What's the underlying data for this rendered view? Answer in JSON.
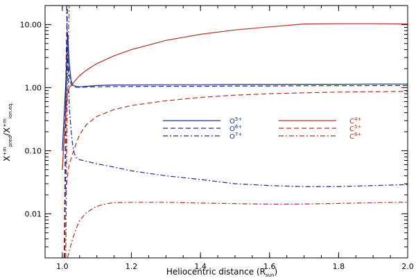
{
  "chart_data": {
    "type": "line",
    "xlim": [
      0.95,
      2.0
    ],
    "ylim": [
      0.002,
      20
    ],
    "yscale": "log",
    "grid": false,
    "legend_position": "center-right",
    "xlabel": {
      "main": "Heliocentric distance (R",
      "sub": "sun",
      "tail": ")"
    },
    "ylabel": {
      "main": "X",
      "sup1": "+m",
      "sub1": "pred",
      "mid": "/X",
      "sup2": "+m",
      "sub2": "ion.eq."
    },
    "x_ticks": [
      1.0,
      1.2,
      1.4,
      1.6,
      1.8,
      2.0
    ],
    "x_tick_labels": [
      "1.0",
      "1.2",
      "1.4",
      "1.6",
      "1.8",
      "2.0"
    ],
    "y_ticks": [
      0.01,
      0.1,
      1,
      10
    ],
    "y_tick_labels": [
      "0.01",
      "0.10",
      "1.00",
      "10.00"
    ],
    "colors": {
      "oxygen": "#1a2a8c",
      "carbon": "#b0301e"
    },
    "series": [
      {
        "name": "O5+",
        "ion": "O",
        "charge": "5+",
        "color": "#1a2a8c",
        "dash": "solid",
        "x": [
          1.0,
          1.005,
          1.01,
          1.015,
          1.02,
          1.025,
          1.03,
          1.04,
          1.05,
          1.07,
          1.1,
          1.15,
          1.2,
          1.3,
          1.4,
          1.5,
          1.6,
          1.7,
          1.8,
          1.9,
          2.0
        ],
        "y": [
          0.1,
          0.35,
          1.2,
          7.5,
          2.5,
          1.3,
          1.1,
          1.04,
          1.03,
          1.05,
          1.08,
          1.1,
          1.1,
          1.11,
          1.11,
          1.12,
          1.12,
          1.13,
          1.13,
          1.14,
          1.14
        ]
      },
      {
        "name": "O6+",
        "ion": "O",
        "charge": "6+",
        "color": "#1a2a8c",
        "dash": "dash",
        "x": [
          1.0,
          1.005,
          1.01,
          1.015,
          1.02,
          1.025,
          1.03,
          1.04,
          1.05,
          1.07,
          1.1,
          1.15,
          1.2,
          1.3,
          1.4,
          1.5,
          1.6,
          1.7,
          1.8,
          1.9,
          2.0
        ],
        "y": [
          0.05,
          0.15,
          0.6,
          3.5,
          1.6,
          1.15,
          1.05,
          1.02,
          1.01,
          1.02,
          1.03,
          1.04,
          1.04,
          1.05,
          1.05,
          1.06,
          1.06,
          1.07,
          1.07,
          1.08,
          1.08
        ]
      },
      {
        "name": "O7+",
        "ion": "O",
        "charge": "7+",
        "color": "#1a2a8c",
        "dash": "dashdot",
        "x": [
          1.012,
          1.014,
          1.016,
          1.018,
          1.02,
          1.025,
          1.03,
          1.035,
          1.04,
          1.05,
          1.07,
          1.1,
          1.15,
          1.2,
          1.3,
          1.4,
          1.5,
          1.6,
          1.7,
          1.8,
          1.9,
          2.0
        ],
        "y": [
          20,
          8.0,
          3.0,
          1.2,
          0.5,
          0.22,
          0.12,
          0.09,
          0.078,
          0.072,
          0.068,
          0.062,
          0.055,
          0.048,
          0.04,
          0.035,
          0.03,
          0.028,
          0.027,
          0.027,
          0.028,
          0.029
        ]
      },
      {
        "name": "C4+",
        "ion": "C",
        "charge": "4+",
        "color": "#b0301e",
        "dash": "solid",
        "x": [
          1.0,
          1.005,
          1.01,
          1.015,
          1.02,
          1.03,
          1.04,
          1.05,
          1.07,
          1.1,
          1.15,
          1.2,
          1.3,
          1.4,
          1.5,
          1.6,
          1.7,
          1.8,
          1.9,
          2.0
        ],
        "y": [
          0.05,
          0.15,
          0.4,
          0.8,
          1.0,
          1.15,
          1.35,
          1.55,
          1.9,
          2.4,
          3.2,
          4.0,
          5.6,
          7.0,
          8.2,
          9.2,
          10.2,
          10.3,
          10.3,
          10.2
        ]
      },
      {
        "name": "C5+",
        "ion": "C",
        "charge": "5+",
        "color": "#b0301e",
        "dash": "dash",
        "x": [
          1.01,
          1.015,
          1.02,
          1.03,
          1.04,
          1.05,
          1.07,
          1.1,
          1.15,
          1.2,
          1.3,
          1.4,
          1.5,
          1.6,
          1.7,
          1.8,
          1.9,
          2.0
        ],
        "y": [
          0.022,
          0.04,
          0.06,
          0.09,
          0.13,
          0.18,
          0.26,
          0.35,
          0.45,
          0.52,
          0.62,
          0.7,
          0.76,
          0.8,
          0.83,
          0.85,
          0.86,
          0.87
        ]
      },
      {
        "name": "C6+",
        "ion": "C",
        "charge": "6+",
        "color": "#b0301e",
        "dash": "dashdot",
        "x": [
          1.015,
          1.02,
          1.03,
          1.04,
          1.05,
          1.07,
          1.1,
          1.13,
          1.15,
          1.2,
          1.3,
          1.4,
          1.5,
          1.6,
          1.7,
          1.8,
          1.9,
          2.0
        ],
        "y": [
          0.002,
          0.0026,
          0.004,
          0.0058,
          0.0078,
          0.0105,
          0.0132,
          0.0145,
          0.015,
          0.0152,
          0.0152,
          0.0148,
          0.0145,
          0.0142,
          0.0143,
          0.0146,
          0.015,
          0.0153
        ]
      }
    ],
    "extra_lines": [
      {
        "x": [
          1.005,
          1.008,
          1.011,
          1.014
        ],
        "y": [
          0.002,
          0.1,
          3.0,
          20
        ],
        "color": "#b0301e",
        "dash": "dash"
      },
      {
        "x": [
          1.007,
          1.01,
          1.012,
          1.015
        ],
        "y": [
          0.002,
          0.12,
          4.0,
          20
        ],
        "color": "#1a2a8c",
        "dash": "dash"
      },
      {
        "x": [
          1.01,
          1.012,
          1.015,
          1.02
        ],
        "y": [
          0.002,
          0.05,
          1.5,
          20
        ],
        "color": "#b0301e",
        "dash": "dashdot"
      }
    ]
  }
}
